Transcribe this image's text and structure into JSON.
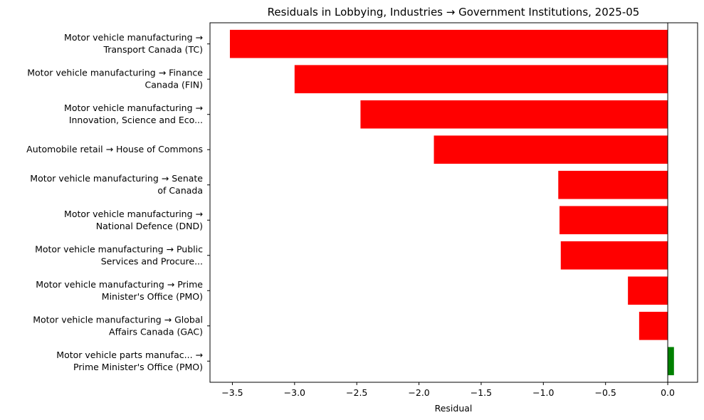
{
  "chart_data": {
    "type": "bar",
    "orientation": "horizontal",
    "title": "Residuals in Lobbying, Industries → Government Institutions, 2025-05",
    "xlabel": "Residual",
    "ylabel": "",
    "xlim": [
      -3.68,
      0.24
    ],
    "xticks": [
      -3.5,
      -3.0,
      -2.5,
      -2.0,
      -1.5,
      -1.0,
      -0.5,
      0.0
    ],
    "xtick_labels": [
      "−3.5",
      "−3.0",
      "−2.5",
      "−2.0",
      "−1.5",
      "−1.0",
      "−0.5",
      "0.0"
    ],
    "grid": false,
    "colors": {
      "negative": "#ff0000",
      "positive": "#008000"
    },
    "categories": [
      [
        "Motor vehicle manufacturing →",
        "Transport Canada (TC)"
      ],
      [
        "Motor vehicle manufacturing → Finance",
        "Canada (FIN)"
      ],
      [
        "Motor vehicle manufacturing →",
        "Innovation, Science and Eco..."
      ],
      [
        "Automobile retail → House of Commons"
      ],
      [
        "Motor vehicle manufacturing → Senate",
        "of Canada"
      ],
      [
        "Motor vehicle manufacturing →",
        "National Defence (DND)"
      ],
      [
        "Motor vehicle manufacturing → Public",
        "Services and Procure..."
      ],
      [
        "Motor vehicle manufacturing → Prime",
        "Minister's Office (PMO)"
      ],
      [
        "Motor vehicle manufacturing → Global",
        "Affairs Canada (GAC)"
      ],
      [
        "Motor vehicle parts manufac... →",
        "Prime Minister's Office (PMO)"
      ]
    ],
    "values": [
      -3.52,
      -3.0,
      -2.47,
      -1.88,
      -0.88,
      -0.87,
      -0.86,
      -0.32,
      -0.23,
      0.05
    ]
  }
}
